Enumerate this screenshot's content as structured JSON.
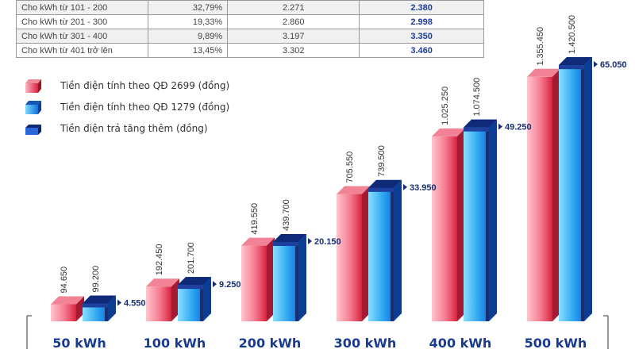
{
  "rate_table": {
    "rows": [
      [
        "Cho kWh từ 101 - 200",
        "32,79%",
        "2.271",
        "2.380"
      ],
      [
        "Cho kWh từ 201 - 300",
        "19,33%",
        "2.860",
        "2.998"
      ],
      [
        "Cho kWh từ 301 - 400",
        "9,89%",
        "3.197",
        "3.350"
      ],
      [
        "Cho kWh từ 401 trở lên",
        "13,45%",
        "3.302",
        "3.460"
      ]
    ]
  },
  "legend": {
    "items": [
      {
        "label": "Tiền điện tính theo QĐ 2699 (đồng)",
        "icon": "red-cube-icon"
      },
      {
        "label": "Tiền điện tính theo QĐ 1279 (đồng)",
        "icon": "blue-cube-icon"
      },
      {
        "label": "Tiền điện trả tăng thêm (đồng)",
        "icon": "dark-blue-cube-icon"
      }
    ]
  },
  "colors": {
    "red_light": "#ffb8c4",
    "red_dark": "#d8213e",
    "blue_light": "#7fd8fb",
    "blue_dark": "#0f73dc",
    "navy": "#1b2f6e",
    "category_text": "#1a3c8f"
  },
  "chart_data": {
    "type": "bar",
    "categories": [
      "50 kWh",
      "100 kWh",
      "200 kWh",
      "300 kWh",
      "400 kWh",
      "500 kWh"
    ],
    "series": [
      {
        "name": "Tiền điện tính theo QĐ 2699 (đồng)",
        "values": [
          94650,
          192450,
          419550,
          705550,
          1025250,
          1355450
        ],
        "labels": [
          "94.650",
          "192.450",
          "419.550",
          "705.550",
          "1.025.250",
          "1.355.450"
        ]
      },
      {
        "name": "Tiền điện tính theo QĐ 1279 (đồng)",
        "values": [
          99200,
          201700,
          439700,
          739500,
          1074500,
          1420500
        ],
        "labels": [
          "99.200",
          "201.700",
          "439.700",
          "739.500",
          "1.074.500",
          "1.420.500"
        ]
      },
      {
        "name": "Tiền điện trả tăng thêm (đồng)",
        "values": [
          4550,
          9250,
          20150,
          33950,
          49250,
          65050
        ],
        "labels": [
          "4.550",
          "9.250",
          "20.150",
          "33.950",
          "49.250",
          "65.050"
        ]
      }
    ],
    "grid": false,
    "legend_position": "top-left"
  }
}
